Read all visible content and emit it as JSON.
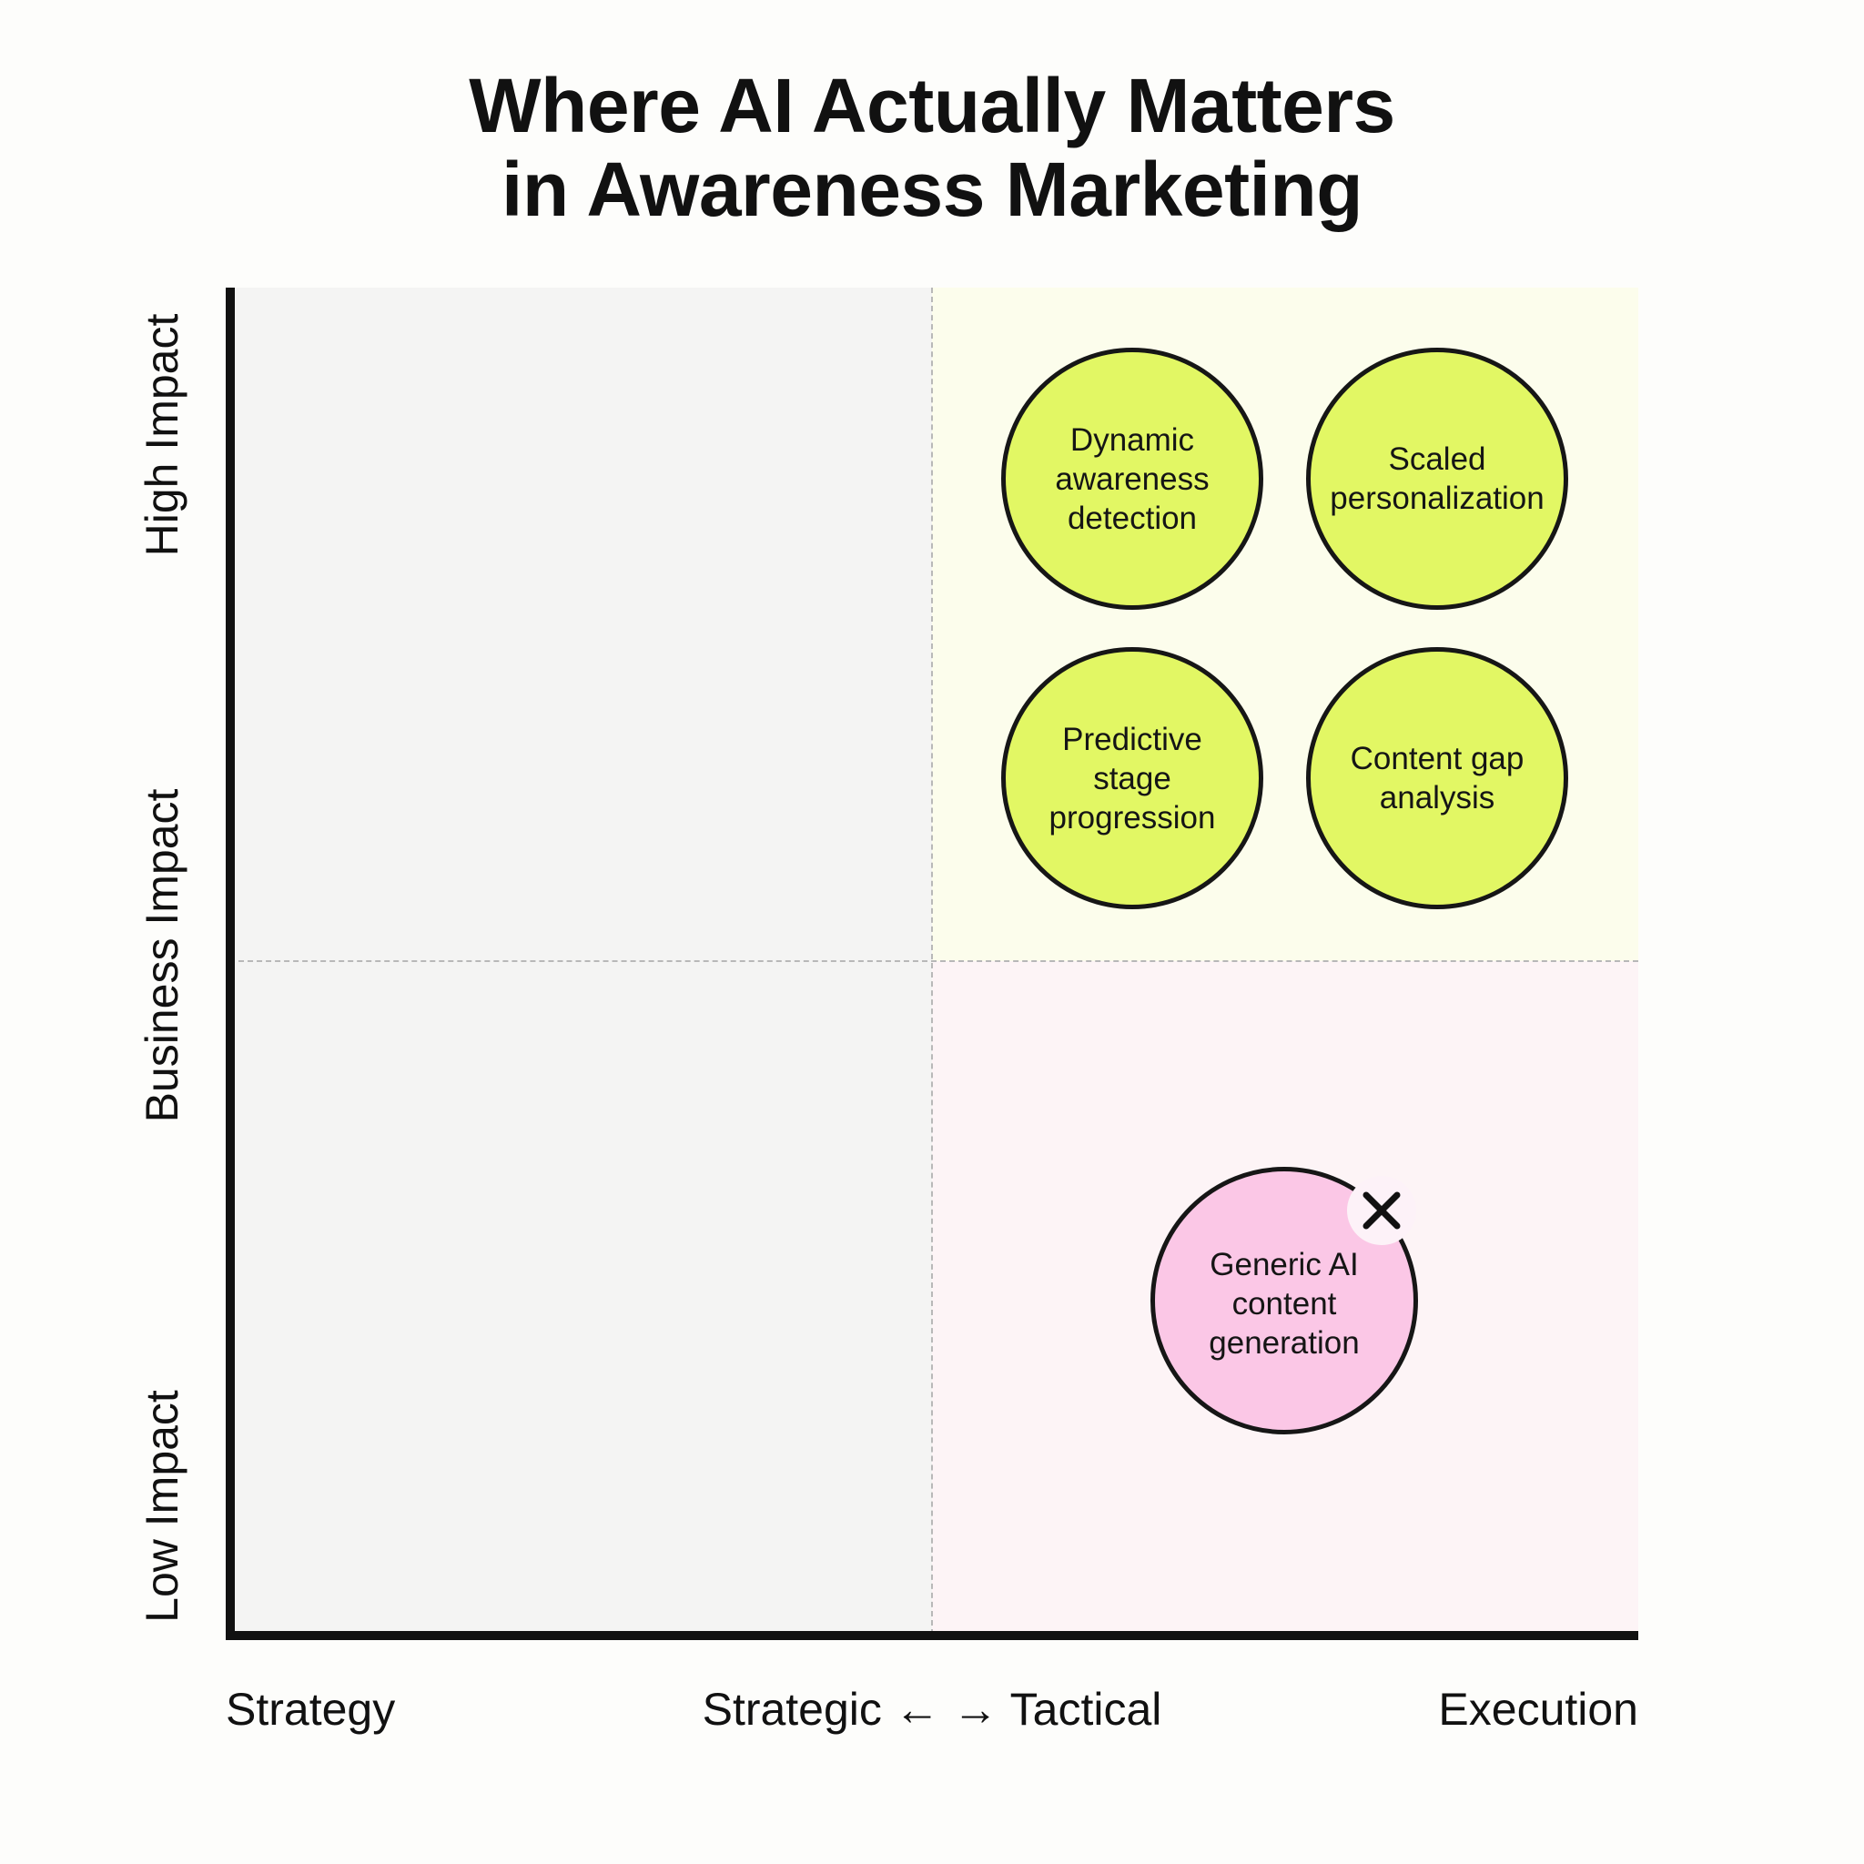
{
  "title": {
    "line1": "Where AI Actually Matters",
    "line2": "in Awareness Marketing"
  },
  "y_axis": {
    "high_label": "High Impact",
    "mid_label": "Business Impact",
    "low_label": "Low Impact"
  },
  "x_axis": {
    "left_label": "Strategy",
    "center_label": "Strategic ← → Tactical",
    "right_label": "Execution"
  },
  "bubbles": [
    {
      "label": "Dynamic awareness detection",
      "quadrant": "high-impact tactical",
      "color": "#e2f764"
    },
    {
      "label": "Scaled personalization",
      "quadrant": "high-impact tactical",
      "color": "#e2f764"
    },
    {
      "label": "Predictive stage progression",
      "quadrant": "high-impact tactical",
      "color": "#e2f764"
    },
    {
      "label": "Content gap analysis",
      "quadrant": "high-impact tactical",
      "color": "#e2f764"
    },
    {
      "label": "Generic AI content generation",
      "quadrant": "low-impact tactical",
      "color": "#fbc7e6",
      "marker": "x-icon"
    }
  ],
  "colors": {
    "quadrant_neutral": "#f4f4f3",
    "quadrant_high_tactical": "#fcfdec",
    "quadrant_low_tactical": "#fdf4f6",
    "axis": "#111111"
  }
}
